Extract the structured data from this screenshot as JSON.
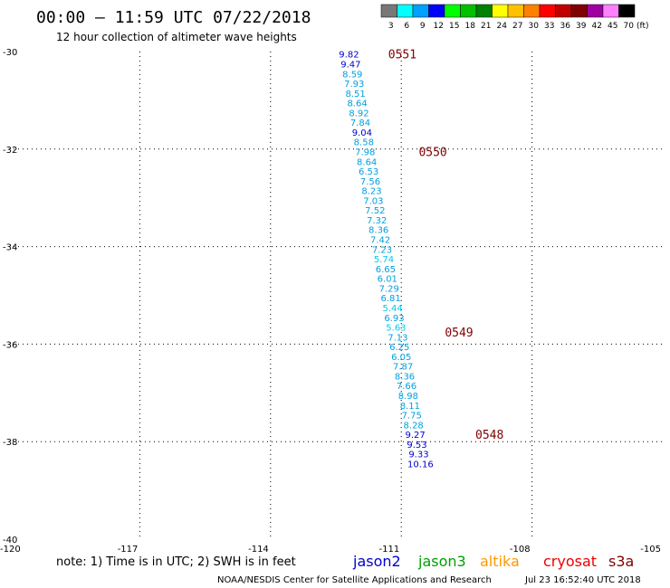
{
  "title": "00:00 – 11:59 UTC 07/22/2018",
  "subtitle": "12 hour collection of altimeter wave heights",
  "legend": {
    "unit": "(ft)",
    "bins": [
      {
        "label": "3",
        "color": "#787878"
      },
      {
        "label": "6",
        "color": "#00ffff"
      },
      {
        "label": "9",
        "color": "#00a0ff"
      },
      {
        "label": "12",
        "color": "#0000ff"
      },
      {
        "label": "15",
        "color": "#00ff00"
      },
      {
        "label": "18",
        "color": "#00c000"
      },
      {
        "label": "21",
        "color": "#008000"
      },
      {
        "label": "24",
        "color": "#ffff00"
      },
      {
        "label": "27",
        "color": "#ffc000"
      },
      {
        "label": "30",
        "color": "#ff8000"
      },
      {
        "label": "33",
        "color": "#ff0000"
      },
      {
        "label": "36",
        "color": "#c00000"
      },
      {
        "label": "39",
        "color": "#800000"
      },
      {
        "label": "42",
        "color": "#a000a0"
      },
      {
        "label": "45",
        "color": "#ff80ff"
      },
      {
        "label": "70",
        "color": "#000000"
      }
    ]
  },
  "note": "note:  1) Time is in UTC;  2) SWH is in feet",
  "satellites": [
    {
      "name": "jason2",
      "color": "#0000cc"
    },
    {
      "name": "jason3",
      "color": "#00a000"
    },
    {
      "name": "altika",
      "color": "#ff9900"
    },
    {
      "name": "cryosat",
      "color": "#ee0000"
    },
    {
      "name": "s3a",
      "color": "#800000"
    }
  ],
  "footer": "NOAA/NESDIS Center for Satellite Applications and Research",
  "timestamp": "Jul 23 16:52:40 UTC 2018",
  "chart_data": {
    "type": "scatter",
    "xlabel": "",
    "ylabel": "",
    "xlim": [
      -120,
      -105
    ],
    "ylim": [
      -40,
      -30
    ],
    "x_ticks": [
      "-120",
      "-117",
      "-114",
      "-111",
      "-108",
      "-105"
    ],
    "y_ticks": [
      "-30",
      "-32",
      "-34",
      "-36",
      "-38",
      "-40"
    ],
    "grid": true,
    "points": [
      {
        "lon": -112.2,
        "lat": -30.05,
        "value": "9.82",
        "color": "#0000cc"
      },
      {
        "lon": -112.16,
        "lat": -30.25,
        "value": "9.47",
        "color": "#0000cc"
      },
      {
        "lon": -112.12,
        "lat": -30.45,
        "value": "8.59",
        "color": "#00a0e0"
      },
      {
        "lon": -112.08,
        "lat": -30.65,
        "value": "7.93",
        "color": "#00a0e0"
      },
      {
        "lon": -112.05,
        "lat": -30.85,
        "value": "8.51",
        "color": "#00a0e0"
      },
      {
        "lon": -112.01,
        "lat": -31.05,
        "value": "8.64",
        "color": "#00a0e0"
      },
      {
        "lon": -111.97,
        "lat": -31.25,
        "value": "8.92",
        "color": "#00a0e0"
      },
      {
        "lon": -111.94,
        "lat": -31.45,
        "value": "7.84",
        "color": "#00a0e0"
      },
      {
        "lon": -111.9,
        "lat": -31.65,
        "value": "9.04",
        "color": "#0000cc"
      },
      {
        "lon": -111.86,
        "lat": -31.85,
        "value": "8.58",
        "color": "#00a0e0"
      },
      {
        "lon": -111.83,
        "lat": -32.05,
        "value": "7.98",
        "color": "#00a0e0"
      },
      {
        "lon": -111.79,
        "lat": -32.25,
        "value": "8.64",
        "color": "#00a0e0"
      },
      {
        "lon": -111.75,
        "lat": -32.45,
        "value": "6.53",
        "color": "#00a0e0"
      },
      {
        "lon": -111.71,
        "lat": -32.65,
        "value": "7.56",
        "color": "#00a0e0"
      },
      {
        "lon": -111.68,
        "lat": -32.85,
        "value": "8.23",
        "color": "#00a0e0"
      },
      {
        "lon": -111.64,
        "lat": -33.05,
        "value": "7.03",
        "color": "#00a0e0"
      },
      {
        "lon": -111.6,
        "lat": -33.25,
        "value": "7.52",
        "color": "#00a0e0"
      },
      {
        "lon": -111.56,
        "lat": -33.45,
        "value": "7.32",
        "color": "#00a0e0"
      },
      {
        "lon": -111.52,
        "lat": -33.65,
        "value": "8.36",
        "color": "#00a0e0"
      },
      {
        "lon": -111.48,
        "lat": -33.85,
        "value": "7.42",
        "color": "#00a0e0"
      },
      {
        "lon": -111.44,
        "lat": -34.05,
        "value": "7.23",
        "color": "#00a0e0"
      },
      {
        "lon": -111.4,
        "lat": -34.25,
        "value": "5.74",
        "color": "#00ccee"
      },
      {
        "lon": -111.36,
        "lat": -34.45,
        "value": "6.65",
        "color": "#00a0e0"
      },
      {
        "lon": -111.32,
        "lat": -34.65,
        "value": "6.01",
        "color": "#00a0e0"
      },
      {
        "lon": -111.28,
        "lat": -34.85,
        "value": "7.29",
        "color": "#00a0e0"
      },
      {
        "lon": -111.24,
        "lat": -35.05,
        "value": "6.81",
        "color": "#00a0e0"
      },
      {
        "lon": -111.2,
        "lat": -35.25,
        "value": "5.44",
        "color": "#00ccee"
      },
      {
        "lon": -111.16,
        "lat": -35.45,
        "value": "6.93",
        "color": "#00a0e0"
      },
      {
        "lon": -111.12,
        "lat": -35.65,
        "value": "5.63",
        "color": "#00ccee"
      },
      {
        "lon": -111.08,
        "lat": -35.85,
        "value": "7.13",
        "color": "#00a0e0"
      },
      {
        "lon": -111.04,
        "lat": -36.05,
        "value": "6.25",
        "color": "#00a0e0"
      },
      {
        "lon": -111.0,
        "lat": -36.25,
        "value": "6.05",
        "color": "#00a0e0"
      },
      {
        "lon": -110.96,
        "lat": -36.45,
        "value": "7.87",
        "color": "#00a0e0"
      },
      {
        "lon": -110.92,
        "lat": -36.65,
        "value": "8.36",
        "color": "#00a0e0"
      },
      {
        "lon": -110.88,
        "lat": -36.85,
        "value": "7.66",
        "color": "#00a0e0"
      },
      {
        "lon": -110.84,
        "lat": -37.05,
        "value": "8.98",
        "color": "#00a0e0"
      },
      {
        "lon": -110.8,
        "lat": -37.25,
        "value": "8.11",
        "color": "#00a0e0"
      },
      {
        "lon": -110.76,
        "lat": -37.45,
        "value": "7.75",
        "color": "#00a0e0"
      },
      {
        "lon": -110.72,
        "lat": -37.65,
        "value": "8.28",
        "color": "#00a0e0"
      },
      {
        "lon": -110.68,
        "lat": -37.85,
        "value": "9.27",
        "color": "#0000cc"
      },
      {
        "lon": -110.64,
        "lat": -38.05,
        "value": "9.53",
        "color": "#0000cc"
      },
      {
        "lon": -110.6,
        "lat": -38.25,
        "value": "9.33",
        "color": "#0000cc"
      },
      {
        "lon": -110.56,
        "lat": -38.45,
        "value": "10.16",
        "color": "#0000cc"
      }
    ],
    "time_labels": [
      {
        "lon": -111.3,
        "lat": -30.05,
        "label": "0551"
      },
      {
        "lon": -110.6,
        "lat": -32.05,
        "label": "0550"
      },
      {
        "lon": -110.0,
        "lat": -35.75,
        "label": "0549"
      },
      {
        "lon": -109.3,
        "lat": -37.85,
        "label": "0548"
      }
    ]
  }
}
